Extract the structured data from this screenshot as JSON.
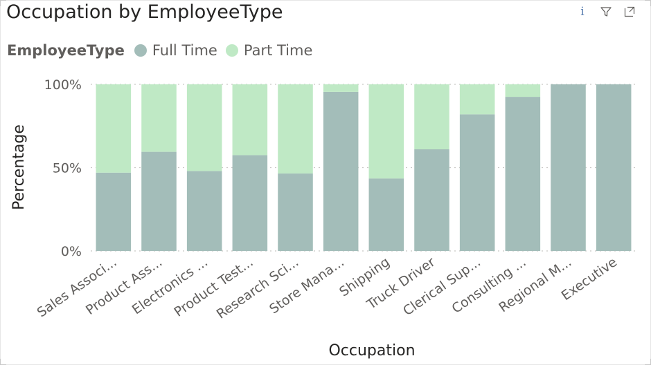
{
  "header": {
    "title": "Occupation by EmployeeType",
    "icons": [
      "info-icon",
      "filter-icon",
      "focus-mode-icon"
    ]
  },
  "legend": {
    "title": "EmployeeType",
    "items": [
      {
        "label": "Full Time",
        "color": "#a3bdb9"
      },
      {
        "label": "Part Time",
        "color": "#bfe9c5"
      }
    ]
  },
  "chart_data": {
    "type": "bar",
    "stacked": "100%",
    "orientation": "vertical",
    "title": "Occupation by EmployeeType",
    "xlabel": "Occupation",
    "ylabel": "Percentage",
    "ylim": [
      0,
      100
    ],
    "y_ticks": [
      "0%",
      "50%",
      "100%"
    ],
    "y_tick_values": [
      0,
      50,
      100
    ],
    "grid": true,
    "legend_position": "top-left",
    "categories": [
      "Sales Associ...",
      "Product Ass...",
      "Electronics ...",
      "Product Test...",
      "Research Sci...",
      "Store Mana...",
      "Shipping",
      "Truck Driver",
      "Clerical Sup...",
      "Consulting ...",
      "Regional M...",
      "Executive"
    ],
    "series": [
      {
        "name": "Full Time",
        "color": "#a3bdb9",
        "values": [
          47,
          59.5,
          48,
          57.5,
          46.5,
          95.5,
          43.5,
          61,
          82,
          92.5,
          100,
          100
        ]
      },
      {
        "name": "Part Time",
        "color": "#bfe9c5",
        "values": [
          53,
          40.5,
          52,
          42.5,
          53.5,
          4.5,
          56.5,
          39,
          18,
          7.5,
          0,
          0
        ]
      }
    ]
  }
}
